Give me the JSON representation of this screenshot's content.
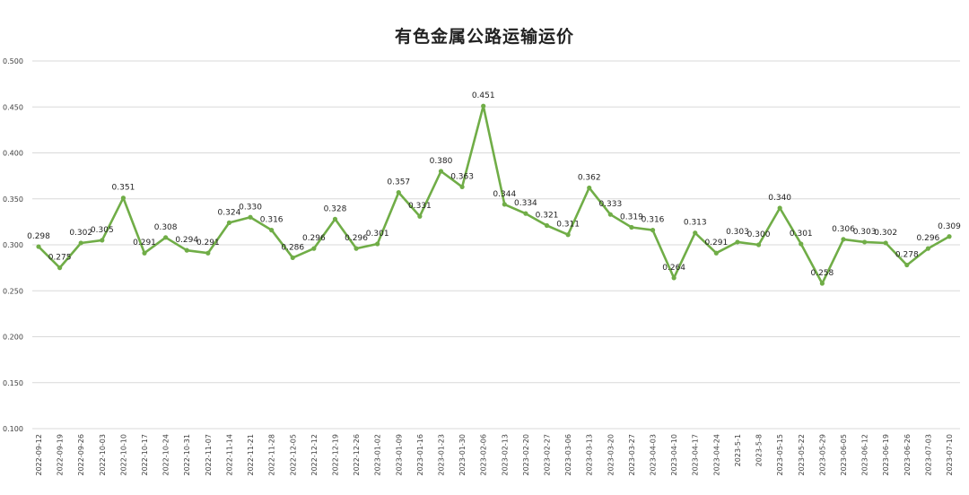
{
  "chart_data": {
    "type": "line",
    "title": "有色金属公路运输运价",
    "xlabel": "",
    "ylabel": "",
    "ylim": [
      0.1,
      0.5
    ],
    "yticks": [
      "0.100",
      "0.150",
      "0.200",
      "0.250",
      "0.300",
      "0.350",
      "0.400",
      "0.450",
      "0.500"
    ],
    "grid": true,
    "legend": "none",
    "line_color": "#70AD47",
    "categories": [
      "2022-09-12",
      "2022-09-19",
      "2022-09-26",
      "2022-10-03",
      "2022-10-10",
      "2022-10-17",
      "2022-10-24",
      "2022-10-31",
      "2022-11-07",
      "2022-11-14",
      "2022-11-21",
      "2022-11-28",
      "2022-12-05",
      "2022-12-12",
      "2022-12-19",
      "2022-12-26",
      "2023-01-02",
      "2023-01-09",
      "2023-01-16",
      "2023-01-23",
      "2023-01-30",
      "2023-02-06",
      "2023-02-13",
      "2023-02-20",
      "2023-02-27",
      "2023-03-06",
      "2023-03-13",
      "2023-03-20",
      "2023-03-27",
      "2023-04-03",
      "2023-04-10",
      "2023-04-17",
      "2023-04-24",
      "2023-5-1",
      "2023-5-8",
      "2023-05-15",
      "2023-05-22",
      "2023-05-29",
      "2023-06-05",
      "2023-06-12",
      "2023-06-19",
      "2023-06-26",
      "2023-07-03",
      "2023-07-10"
    ],
    "values": [
      0.298,
      0.275,
      0.302,
      0.305,
      0.351,
      0.291,
      0.308,
      0.294,
      0.291,
      0.324,
      0.33,
      0.316,
      0.286,
      0.296,
      0.328,
      0.296,
      0.301,
      0.357,
      0.331,
      0.38,
      0.363,
      0.451,
      0.344,
      0.334,
      0.321,
      0.311,
      0.362,
      0.333,
      0.319,
      0.316,
      0.264,
      0.313,
      0.291,
      0.303,
      0.3,
      0.34,
      0.301,
      0.258,
      0.306,
      0.303,
      0.302,
      0.278,
      0.296,
      0.309
    ],
    "data_labels": [
      "0.298",
      "0.275",
      "0.302",
      "0.305",
      "0.351",
      "0.291",
      "0.308",
      "0.294",
      "0.291",
      "0.324",
      "0.330",
      "0.316",
      "0.286",
      "0.296",
      "0.328",
      "0.296",
      "0.301",
      "0.357",
      "0.331",
      "0.380",
      "0.363",
      "0.451",
      "0.344",
      "0.334",
      "0.321",
      "0.311",
      "0.362",
      "0.333",
      "0.319",
      "0.316",
      "0.264",
      "0.313",
      "0.291",
      "0.303",
      "0.300",
      "0.340",
      "0.301",
      "0.258",
      "0.306",
      "0.303",
      "0.302",
      "0.278",
      "0.296",
      "0.309"
    ]
  }
}
